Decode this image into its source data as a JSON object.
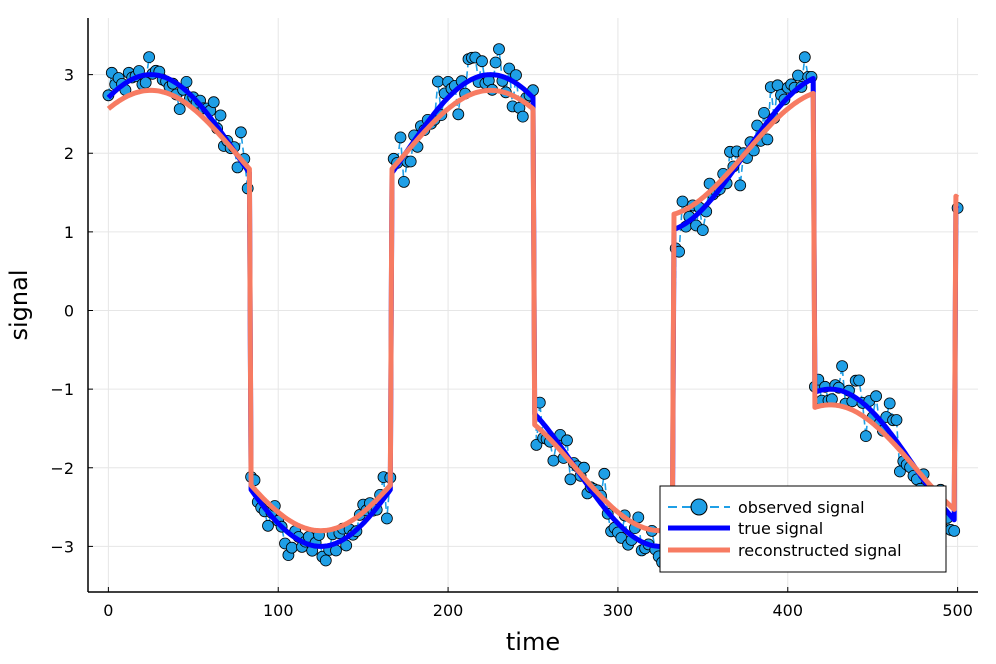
{
  "chart_data": {
    "type": "line",
    "title": "",
    "xlabel": "time",
    "ylabel": "signal",
    "xlim": [
      -12,
      512
    ],
    "ylim": [
      -3.58,
      3.72
    ],
    "xticks": [
      0,
      100,
      200,
      300,
      400,
      500
    ],
    "xtick_labels": [
      "0",
      "100",
      "200",
      "300",
      "400",
      "500"
    ],
    "yticks": [
      -3,
      -2,
      -1,
      0,
      1,
      2,
      3
    ],
    "ytick_labels": [
      "−3",
      "−2",
      "−1",
      "0",
      "1",
      "2",
      "3"
    ],
    "grid": true,
    "legend_position": "bottom-right",
    "segments": [
      {
        "start": 0,
        "end": 83,
        "kind": "pos"
      },
      {
        "start": 84,
        "end": 166,
        "kind": "neg"
      },
      {
        "start": 167,
        "end": 250,
        "kind": "pos"
      },
      {
        "start": 251,
        "end": 332,
        "kind": "neg"
      },
      {
        "start": 333,
        "end": 415,
        "kind": "pos"
      },
      {
        "start": 416,
        "end": 498,
        "kind": "neg"
      },
      {
        "start": 499,
        "end": 500,
        "kind": "pos"
      }
    ],
    "model": {
      "period": 200,
      "amplitude": 1,
      "pos_offset": 2,
      "neg_offset": -2,
      "recon_shrink": 0.8,
      "noise_amplitude": 0.28
    },
    "series": [
      {
        "name": "observed signal",
        "color": "#1f9fe6",
        "style": "dashed-line-with-circles"
      },
      {
        "name": "true signal",
        "color": "#0000ff",
        "style": "solid"
      },
      {
        "name": "reconstructed signal",
        "color": "#f77b62",
        "style": "solid"
      }
    ]
  }
}
